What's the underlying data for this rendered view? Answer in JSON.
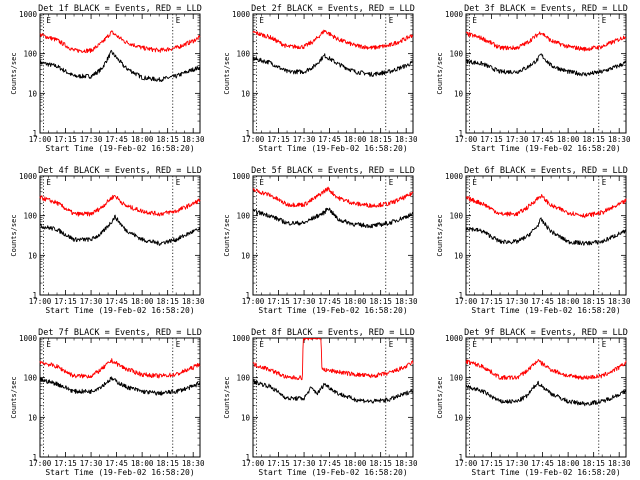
{
  "figure": {
    "x_tick_labels": [
      "17:00",
      "17:15",
      "17:30",
      "17:45",
      "18:00",
      "18:15",
      "18:30"
    ],
    "y_tick_labels": [
      "1",
      "10",
      "100",
      "1000"
    ],
    "ylabel": "Counts/sec",
    "xlabel": "Start Time (19-Feb-02 16:58:20)",
    "marker_letter": "E",
    "colors": {
      "events": "#000000",
      "lld": "#ff0000",
      "marker": "#000000"
    }
  },
  "chart_data": [
    {
      "type": "line",
      "title": "Det 1f BLACK = Events, RED = LLD",
      "xlabel": "Start Time (19-Feb-02 16:58:20)",
      "ylabel": "Counts/sec",
      "x_unit": "minutes after 17:00",
      "xlim": [
        0,
        94
      ],
      "ylim": [
        1,
        1000
      ],
      "y_scale": "log",
      "markers_x": [
        2,
        78
      ],
      "series": [
        {
          "name": "Events",
          "color": "#000000",
          "x": [
            0,
            10,
            20,
            30,
            36,
            42,
            50,
            60,
            70,
            80,
            90,
            94
          ],
          "y": [
            60,
            48,
            27,
            27,
            40,
            110,
            45,
            25,
            22,
            27,
            40,
            45
          ]
        },
        {
          "name": "LLD",
          "color": "#ff0000",
          "x": [
            0,
            10,
            20,
            30,
            36,
            42,
            50,
            60,
            70,
            80,
            90,
            94
          ],
          "y": [
            300,
            220,
            120,
            120,
            180,
            350,
            200,
            140,
            120,
            140,
            210,
            260
          ]
        }
      ]
    },
    {
      "type": "line",
      "title": "Det 2f BLACK = Events, RED = LLD",
      "xlabel": "Start Time (19-Feb-02 16:58:20)",
      "ylabel": "Counts/sec",
      "x_unit": "minutes after 17:00",
      "xlim": [
        0,
        94
      ],
      "ylim": [
        1,
        1000
      ],
      "y_scale": "log",
      "markers_x": [
        2,
        78
      ],
      "series": [
        {
          "name": "Events",
          "color": "#000000",
          "x": [
            0,
            10,
            20,
            30,
            36,
            42,
            50,
            60,
            70,
            80,
            90,
            94
          ],
          "y": [
            75,
            60,
            35,
            35,
            48,
            90,
            55,
            35,
            30,
            35,
            50,
            60
          ]
        },
        {
          "name": "LLD",
          "color": "#ff0000",
          "x": [
            0,
            10,
            20,
            30,
            36,
            42,
            50,
            60,
            70,
            80,
            90,
            94
          ],
          "y": [
            350,
            260,
            150,
            150,
            210,
            380,
            230,
            160,
            140,
            160,
            240,
            300
          ]
        }
      ]
    },
    {
      "type": "line",
      "title": "Det 3f BLACK = Events, RED = LLD",
      "xlabel": "Start Time (19-Feb-02 16:58:20)",
      "ylabel": "Counts/sec",
      "x_unit": "minutes after 17:00",
      "xlim": [
        0,
        94
      ],
      "ylim": [
        1,
        1000
      ],
      "y_scale": "log",
      "markers_x": [
        2,
        78
      ],
      "series": [
        {
          "name": "Events",
          "color": "#000000",
          "x": [
            0,
            10,
            20,
            30,
            36,
            42,
            44,
            50,
            60,
            70,
            80,
            90,
            94
          ],
          "y": [
            65,
            55,
            35,
            35,
            45,
            70,
            95,
            50,
            35,
            30,
            35,
            50,
            60
          ]
        },
        {
          "name": "LLD",
          "color": "#ff0000",
          "x": [
            0,
            10,
            20,
            30,
            36,
            42,
            44,
            50,
            60,
            70,
            80,
            90,
            94
          ],
          "y": [
            320,
            240,
            140,
            140,
            190,
            300,
            350,
            210,
            150,
            130,
            150,
            230,
            280
          ]
        }
      ]
    },
    {
      "type": "line",
      "title": "Det 4f BLACK = Events, RED = LLD",
      "xlabel": "Start Time (19-Feb-02 16:58:20)",
      "ylabel": "Counts/sec",
      "x_unit": "minutes after 17:00",
      "xlim": [
        0,
        94
      ],
      "ylim": [
        1,
        1000
      ],
      "y_scale": "log",
      "markers_x": [
        2,
        78
      ],
      "series": [
        {
          "name": "Events",
          "color": "#000000",
          "x": [
            0,
            10,
            20,
            30,
            36,
            42,
            44,
            50,
            60,
            70,
            80,
            90,
            94
          ],
          "y": [
            55,
            45,
            25,
            25,
            35,
            70,
            95,
            45,
            25,
            20,
            25,
            40,
            45
          ]
        },
        {
          "name": "LLD",
          "color": "#ff0000",
          "x": [
            0,
            10,
            20,
            30,
            36,
            42,
            44,
            50,
            60,
            70,
            80,
            90,
            94
          ],
          "y": [
            290,
            210,
            110,
            110,
            160,
            280,
            320,
            180,
            130,
            110,
            130,
            200,
            250
          ]
        }
      ]
    },
    {
      "type": "line",
      "title": "Det 5f BLACK = Events, RED = LLD",
      "xlabel": "Start Time (19-Feb-02 16:58:20)",
      "ylabel": "Counts/sec",
      "x_unit": "minutes after 17:00",
      "xlim": [
        0,
        94
      ],
      "ylim": [
        1,
        1000
      ],
      "y_scale": "log",
      "markers_x": [
        2,
        78
      ],
      "series": [
        {
          "name": "Events",
          "color": "#000000",
          "x": [
            0,
            10,
            20,
            30,
            36,
            42,
            44,
            50,
            60,
            70,
            80,
            90,
            94
          ],
          "y": [
            130,
            100,
            65,
            65,
            90,
            120,
            160,
            80,
            60,
            55,
            65,
            95,
            110
          ]
        },
        {
          "name": "LLD",
          "color": "#ff0000",
          "x": [
            0,
            10,
            20,
            30,
            36,
            42,
            44,
            50,
            60,
            70,
            80,
            90,
            94
          ],
          "y": [
            450,
            330,
            190,
            190,
            270,
            420,
            480,
            280,
            200,
            180,
            200,
            300,
            380
          ]
        }
      ]
    },
    {
      "type": "line",
      "title": "Det 6f BLACK = Events, RED = LLD",
      "xlabel": "Start Time (19-Feb-02 16:58:20)",
      "ylabel": "Counts/sec",
      "x_unit": "minutes after 17:00",
      "xlim": [
        0,
        94
      ],
      "ylim": [
        1,
        1000
      ],
      "y_scale": "log",
      "markers_x": [
        2,
        78
      ],
      "series": [
        {
          "name": "Events",
          "color": "#000000",
          "x": [
            0,
            10,
            20,
            30,
            36,
            42,
            44,
            50,
            60,
            70,
            80,
            90,
            94
          ],
          "y": [
            50,
            40,
            22,
            22,
            30,
            55,
            80,
            40,
            22,
            20,
            22,
            35,
            40
          ]
        },
        {
          "name": "LLD",
          "color": "#ff0000",
          "x": [
            0,
            10,
            20,
            30,
            36,
            42,
            44,
            50,
            60,
            70,
            80,
            90,
            94
          ],
          "y": [
            280,
            200,
            110,
            110,
            160,
            270,
            320,
            180,
            120,
            100,
            120,
            190,
            240
          ]
        }
      ]
    },
    {
      "type": "line",
      "title": "Det 7f BLACK = Events, RED = LLD",
      "xlabel": "Start Time (19-Feb-02 16:58:20)",
      "ylabel": "Counts/sec",
      "x_unit": "minutes after 17:00",
      "xlim": [
        0,
        94
      ],
      "ylim": [
        1,
        1000
      ],
      "y_scale": "log",
      "markers_x": [
        2,
        78
      ],
      "series": [
        {
          "name": "Events",
          "color": "#000000",
          "x": [
            0,
            10,
            20,
            30,
            36,
            42,
            50,
            60,
            70,
            80,
            90,
            94
          ],
          "y": [
            90,
            70,
            45,
            45,
            60,
            95,
            60,
            45,
            40,
            45,
            60,
            75
          ]
        },
        {
          "name": "LLD",
          "color": "#ff0000",
          "x": [
            0,
            10,
            20,
            30,
            36,
            42,
            50,
            60,
            70,
            80,
            90,
            94
          ],
          "y": [
            250,
            190,
            110,
            110,
            160,
            270,
            170,
            120,
            110,
            120,
            180,
            230
          ]
        }
      ]
    },
    {
      "type": "line",
      "title": "Det 8f BLACK = Events, RED = LLD",
      "xlabel": "Start Time (19-Feb-02 16:58:20)",
      "ylabel": "Counts/sec",
      "x_unit": "minutes after 17:00",
      "xlim": [
        0,
        94
      ],
      "ylim": [
        1,
        1000
      ],
      "y_scale": "log",
      "markers_x": [
        2,
        78
      ],
      "series": [
        {
          "name": "Events",
          "color": "#000000",
          "x": [
            0,
            10,
            20,
            30,
            34,
            38,
            42,
            44,
            50,
            60,
            70,
            80,
            90,
            94
          ],
          "y": [
            80,
            60,
            30,
            30,
            55,
            40,
            70,
            60,
            40,
            28,
            25,
            28,
            40,
            50
          ]
        },
        {
          "name": "LLD",
          "color": "#ff0000",
          "x": [
            0,
            10,
            20,
            29,
            29.5,
            36,
            40,
            40.5,
            50,
            60,
            70,
            80,
            90,
            94
          ],
          "y": [
            220,
            160,
            100,
            100,
            1000,
            1000,
            1000,
            160,
            140,
            120,
            110,
            130,
            190,
            250
          ]
        }
      ]
    },
    {
      "type": "line",
      "title": "Det 9f BLACK = Events, RED = LLD",
      "xlabel": "Start Time (19-Feb-02 16:58:20)",
      "ylabel": "Counts/sec",
      "x_unit": "minutes after 17:00",
      "xlim": [
        0,
        94
      ],
      "ylim": [
        1,
        1000
      ],
      "y_scale": "log",
      "markers_x": [
        2,
        78
      ],
      "series": [
        {
          "name": "Events",
          "color": "#000000",
          "x": [
            0,
            10,
            20,
            30,
            36,
            42,
            50,
            60,
            70,
            80,
            90,
            94
          ],
          "y": [
            60,
            45,
            25,
            25,
            35,
            75,
            40,
            25,
            22,
            25,
            38,
            45
          ]
        },
        {
          "name": "LLD",
          "color": "#ff0000",
          "x": [
            0,
            10,
            20,
            30,
            36,
            42,
            50,
            60,
            70,
            80,
            90,
            94
          ],
          "y": [
            260,
            190,
            100,
            100,
            150,
            270,
            160,
            110,
            100,
            110,
            180,
            240
          ]
        }
      ]
    }
  ]
}
